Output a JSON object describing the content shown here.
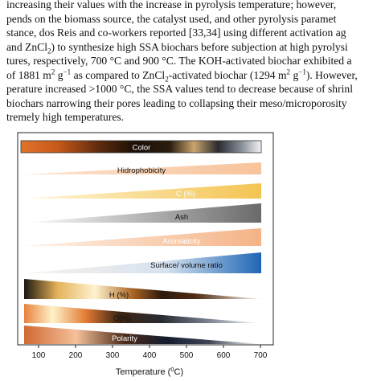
{
  "paragraph": {
    "lines": [
      [
        "increasing their values with the increase in pyrolysis temperature; however, ",
        "",
        ""
      ],
      [
        "pends on the biomass source, the catalyst used, and other pyrolysis paramet",
        "",
        ""
      ],
      [
        "stance, dos Reis and co-workers reported [33,34] using different activation ag",
        "",
        ""
      ],
      [
        "and ZnCl",
        "sub:2",
        ") to synthesize high SSA biochars before subjection at high pyrolysi"
      ],
      [
        "tures, respectively, 700 °C and 900 °C. The KOH-activated biochar exhibited a",
        "",
        ""
      ],
      [
        "of 1881 m",
        "sup:2",
        " g"
      ],
      [
        "perature increased >1000 °C, the SSA values tend to decrease because of shrinl",
        "",
        ""
      ],
      [
        "biochars narrowing their pores leading to collapsing their meso/microporosity",
        "",
        ""
      ],
      [
        "tremely high temperatures.",
        "",
        ""
      ]
    ],
    "line6_rest": {
      "sup_neg1": "−1",
      "mid": " as compared to ZnCl",
      "sub2": "2",
      "mid2": "-activated biochar (1294 m",
      "sup2": "2",
      "mid3": " g",
      "sup3": "−1",
      "end": "). However,"
    }
  },
  "figure": {
    "bars": [
      {
        "label": "Color"
      },
      {
        "label": "Hidrophobicity"
      },
      {
        "label": "C (%)"
      },
      {
        "label": "Ash"
      },
      {
        "label": "Aromaticity"
      },
      {
        "label": "Surface/ volume ratio"
      },
      {
        "label": "H (%)"
      },
      {
        "label": "O(%)"
      },
      {
        "label": "Polarity"
      }
    ],
    "x_ticks": [
      "100",
      "200",
      "300",
      "400",
      "500",
      "600",
      "700"
    ],
    "x_axis_label": "Temperature (",
    "x_axis_label_sup": "0",
    "x_axis_label_end": "C)"
  }
}
